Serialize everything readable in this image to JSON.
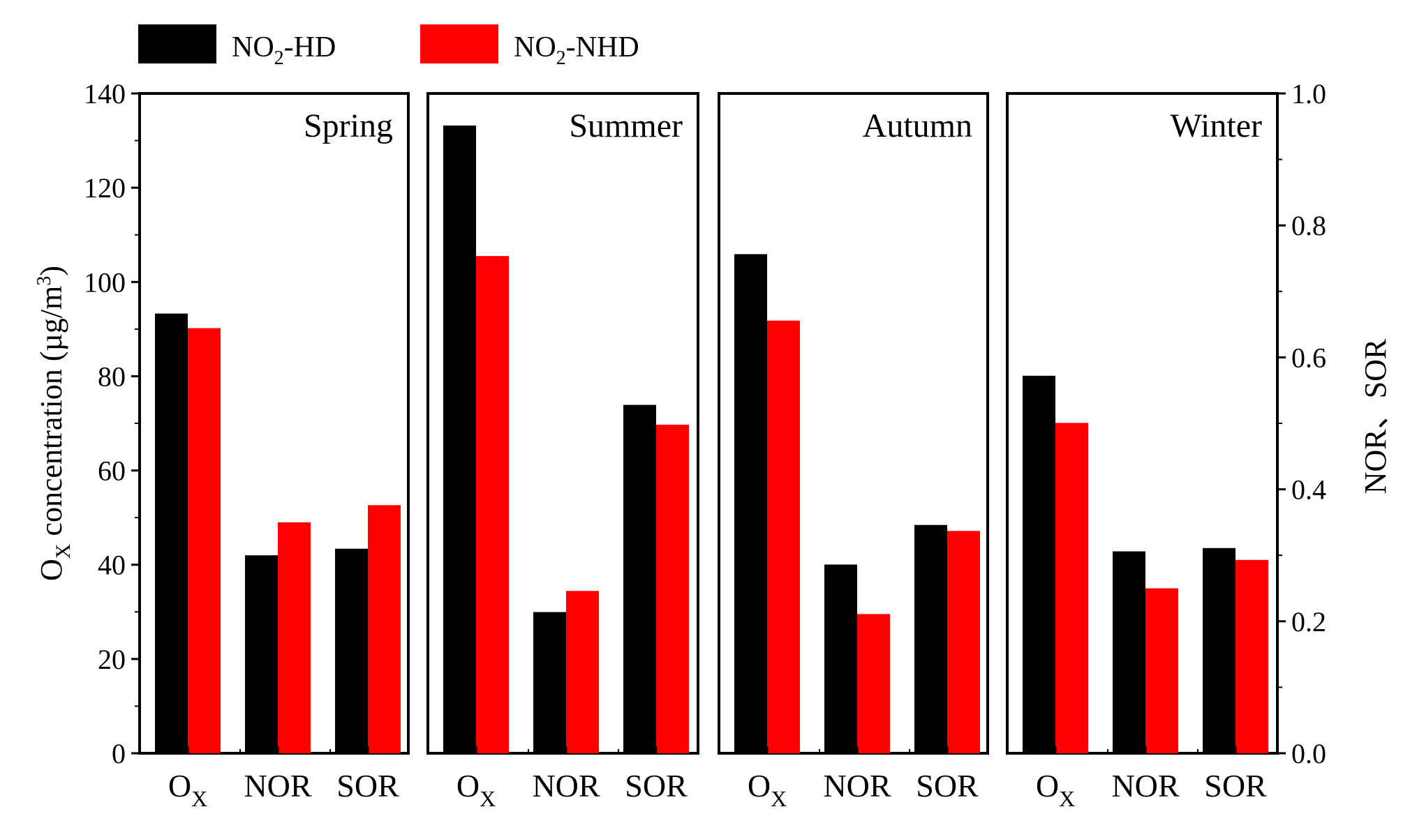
{
  "chart_data": {
    "type": "bar",
    "panels": [
      {
        "title": "Spring",
        "categories": [
          "OX",
          "NOR",
          "SOR"
        ],
        "series": [
          {
            "name": "NO2-HD",
            "values": [
              93.3,
              0.3,
              0.31
            ]
          },
          {
            "name": "NO2-NHD",
            "values": [
              90.2,
              0.35,
              0.376
            ]
          }
        ]
      },
      {
        "title": "Summer",
        "categories": [
          "OX",
          "NOR",
          "SOR"
        ],
        "series": [
          {
            "name": "NO2-HD",
            "values": [
              133.2,
              0.214,
              0.528
            ]
          },
          {
            "name": "NO2-NHD",
            "values": [
              105.5,
              0.246,
              0.498
            ]
          }
        ]
      },
      {
        "title": "Autumn",
        "categories": [
          "OX",
          "NOR",
          "SOR"
        ],
        "series": [
          {
            "name": "NO2-HD",
            "values": [
              105.9,
              0.286,
              0.346
            ]
          },
          {
            "name": "NO2-NHD",
            "values": [
              91.8,
              0.211,
              0.337
            ]
          }
        ]
      },
      {
        "title": "Winter",
        "categories": [
          "OX",
          "NOR",
          "SOR"
        ],
        "series": [
          {
            "name": "NO2-HD",
            "values": [
              80.1,
              0.306,
              0.311
            ]
          },
          {
            "name": "NO2-NHD",
            "values": [
              70.1,
              0.25,
              0.293
            ]
          }
        ]
      }
    ],
    "legend": [
      {
        "prefix": "NO",
        "sub": "2",
        "suffix": "-HD",
        "color": "#000000"
      },
      {
        "prefix": "NO",
        "sub": "2",
        "suffix": "-NHD",
        "color": "#ff0000"
      }
    ],
    "y_left": {
      "label_prefix": "O",
      "label_sub": "X",
      "label_main": " concentration (µg/m",
      "label_sup": "3",
      "label_end": ")",
      "ylim": [
        0,
        140
      ],
      "ticks": [
        "0",
        "20",
        "40",
        "60",
        "80",
        "100",
        "120",
        "140"
      ]
    },
    "y_right": {
      "label": "NOR、SOR",
      "ylim": [
        0.0,
        1.0
      ],
      "ticks": [
        "0.0",
        "0.2",
        "0.4",
        "0.6",
        "0.8",
        "1.0"
      ]
    },
    "x_tick_labels": [
      {
        "main": "O",
        "sub": "X"
      },
      {
        "main": "NOR",
        "sub": ""
      },
      {
        "main": "SOR",
        "sub": ""
      }
    ]
  }
}
